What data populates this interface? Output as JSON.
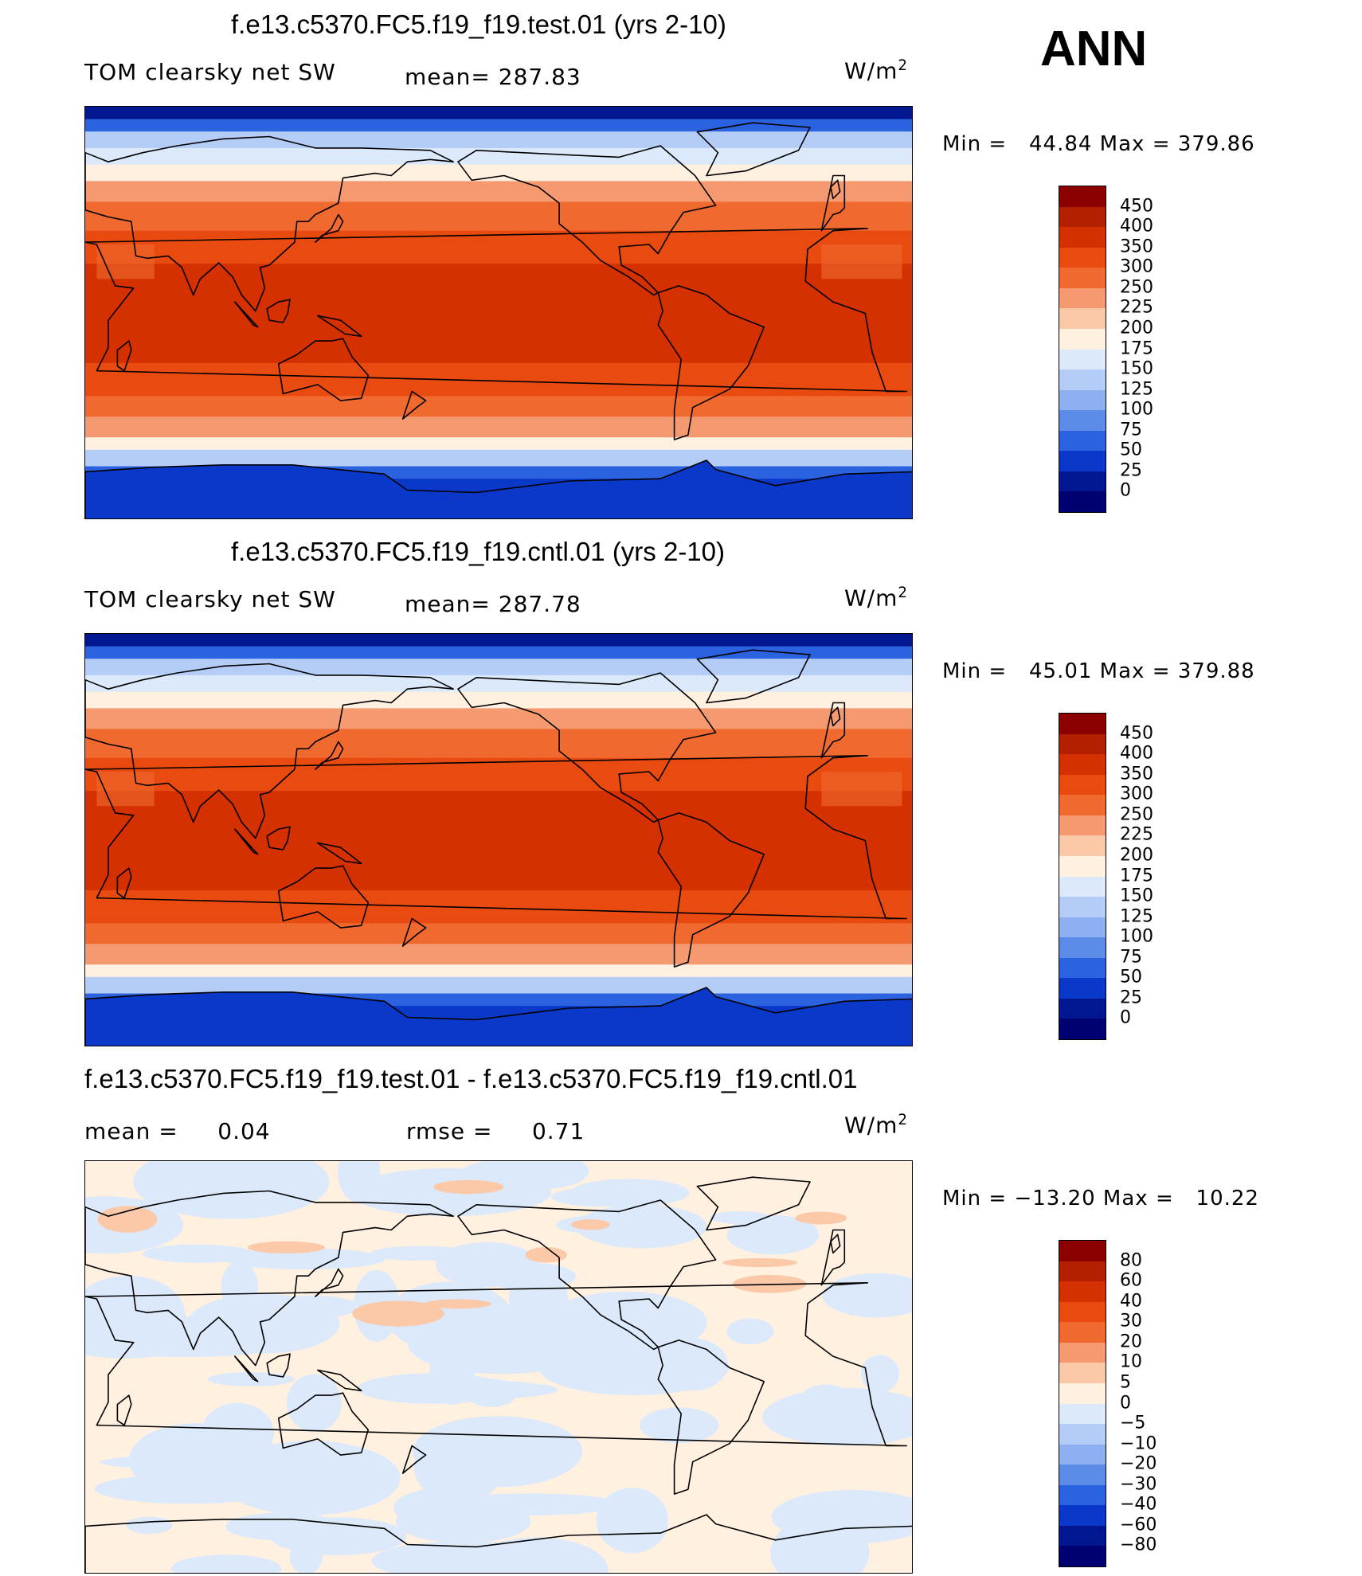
{
  "season": "ANN",
  "panels": [
    {
      "title": "f.e13.c5370.FC5.f19_f19.test.01 (yrs 2-10)",
      "left_label": "TOM clearsky net SW",
      "mean_label": "mean= 287.83",
      "units": "W/m",
      "units_sup": "2",
      "minmax": "Min =   44.84 Max = 379.86",
      "colorbar_labels": [
        "450",
        "400",
        "350",
        "300",
        "250",
        "225",
        "200",
        "175",
        "150",
        "125",
        "100",
        "75",
        "50",
        "25",
        "0"
      ],
      "colorbar_colors": [
        "#8b0000",
        "#b22000",
        "#d43000",
        "#e84a10",
        "#f06a30",
        "#f59a70",
        "#fbc8a8",
        "#fff0e0",
        "#dbe9fb",
        "#b3cdf7",
        "#8fb0f0",
        "#5c8ce8",
        "#2a62e0",
        "#0a38c8",
        "#02168f",
        "#000070"
      ],
      "data_min": 44.84,
      "data_max": 379.86
    },
    {
      "title": "f.e13.c5370.FC5.f19_f19.cntl.01 (yrs 2-10)",
      "left_label": "TOM clearsky net SW",
      "mean_label": "mean= 287.78",
      "units": "W/m",
      "units_sup": "2",
      "minmax": "Min =   45.01 Max = 379.88",
      "colorbar_labels": [
        "450",
        "400",
        "350",
        "300",
        "250",
        "225",
        "200",
        "175",
        "150",
        "125",
        "100",
        "75",
        "50",
        "25",
        "0"
      ],
      "colorbar_colors": [
        "#8b0000",
        "#b22000",
        "#d43000",
        "#e84a10",
        "#f06a30",
        "#f59a70",
        "#fbc8a8",
        "#fff0e0",
        "#dbe9fb",
        "#b3cdf7",
        "#8fb0f0",
        "#5c8ce8",
        "#2a62e0",
        "#0a38c8",
        "#02168f",
        "#000070"
      ],
      "data_min": 45.01,
      "data_max": 379.88
    },
    {
      "title": "f.e13.c5370.FC5.f19_f19.test.01 - f.e13.c5370.FC5.f19_f19.cntl.01",
      "left_label": "mean =     0.04",
      "mean_label": "rmse =     0.71",
      "units": "W/m",
      "units_sup": "2",
      "minmax": "Min = −13.20 Max =   10.22",
      "colorbar_labels": [
        "80",
        "60",
        "40",
        "30",
        "20",
        "10",
        "5",
        "0",
        "−5",
        "−10",
        "−20",
        "−30",
        "−40",
        "−60",
        "−80"
      ],
      "colorbar_colors": [
        "#8b0000",
        "#b22000",
        "#d43000",
        "#e84a10",
        "#f06a30",
        "#f59a70",
        "#fbc8a8",
        "#fff0e0",
        "#dbe9fb",
        "#b3cdf7",
        "#8fb0f0",
        "#5c8ce8",
        "#2a62e0",
        "#0a38c8",
        "#02168f",
        "#000070"
      ],
      "data_min": -13.2,
      "data_max": 10.22
    }
  ]
}
